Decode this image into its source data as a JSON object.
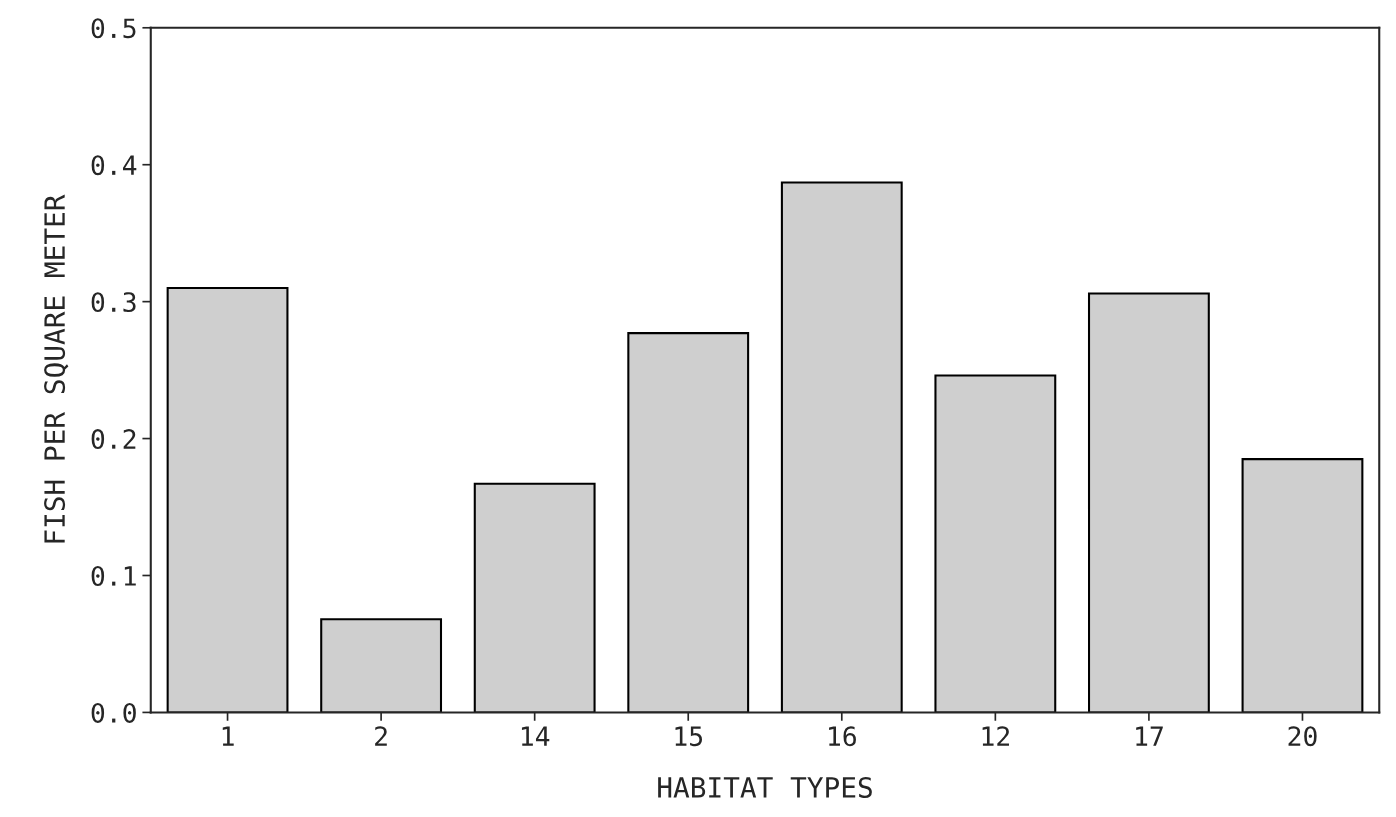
{
  "chart_data": {
    "type": "bar",
    "xlabel": "HABITAT TYPES",
    "ylabel": "FISH PER SQUARE METER",
    "categories": [
      "1",
      "2",
      "14",
      "15",
      "16",
      "12",
      "17",
      "20"
    ],
    "values": [
      0.31,
      0.068,
      0.167,
      0.277,
      0.387,
      0.246,
      0.306,
      0.185
    ],
    "color": "#cfcfcf",
    "ylim": [
      0,
      0.5
    ],
    "yticks": [
      {
        "value": 0,
        "label": "0.0"
      },
      0.1,
      0.2,
      0.3,
      0.4,
      0.5
    ],
    "grid": false
  }
}
